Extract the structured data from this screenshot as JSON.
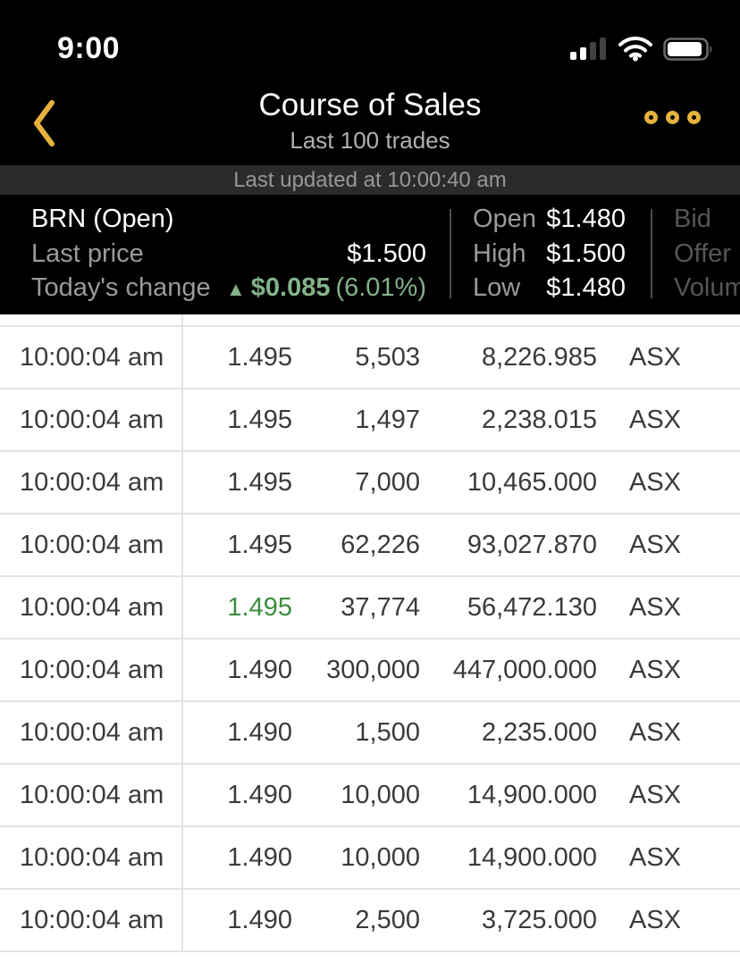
{
  "status_bar": {
    "time": "9:00"
  },
  "header": {
    "title": "Course of Sales",
    "subtitle": "Last 100 trades"
  },
  "updated_bar": {
    "text": "Last updated at 10:00:40 am"
  },
  "quote_panel": {
    "symbol_status": "BRN (Open)",
    "last_price_label": "Last price",
    "last_price": "$1.500",
    "change_label": "Today's change",
    "change_arrow": "▲",
    "change_value": "$0.085",
    "change_percent": "(6.01%)",
    "stats": [
      {
        "label": "Open",
        "value": "$1.480"
      },
      {
        "label": "High",
        "value": "$1.500"
      },
      {
        "label": "Low",
        "value": "$1.480"
      }
    ],
    "dim_labels": [
      "Bid",
      "Offer",
      "Volume"
    ]
  },
  "colors": {
    "accent_gold": "#e6b23e",
    "positive_change_muted": "#84b38a",
    "positive_price_green": "#3c8d40",
    "updated_bar_bg": "#2b2b2b",
    "panel_bg": "#000000",
    "row_divider": "#e4e4e4"
  },
  "trades": [
    {
      "time": "10:00:04 am",
      "price": "1.495",
      "quantity": "5,503",
      "value": "8,226.985",
      "exchange": "ASX",
      "price_up": false
    },
    {
      "time": "10:00:04 am",
      "price": "1.495",
      "quantity": "1,497",
      "value": "2,238.015",
      "exchange": "ASX",
      "price_up": false
    },
    {
      "time": "10:00:04 am",
      "price": "1.495",
      "quantity": "7,000",
      "value": "10,465.000",
      "exchange": "ASX",
      "price_up": false
    },
    {
      "time": "10:00:04 am",
      "price": "1.495",
      "quantity": "62,226",
      "value": "93,027.870",
      "exchange": "ASX",
      "price_up": false
    },
    {
      "time": "10:00:04 am",
      "price": "1.495",
      "quantity": "37,774",
      "value": "56,472.130",
      "exchange": "ASX",
      "price_up": true
    },
    {
      "time": "10:00:04 am",
      "price": "1.490",
      "quantity": "300,000",
      "value": "447,000.000",
      "exchange": "ASX",
      "price_up": false
    },
    {
      "time": "10:00:04 am",
      "price": "1.490",
      "quantity": "1,500",
      "value": "2,235.000",
      "exchange": "ASX",
      "price_up": false
    },
    {
      "time": "10:00:04 am",
      "price": "1.490",
      "quantity": "10,000",
      "value": "14,900.000",
      "exchange": "ASX",
      "price_up": false
    },
    {
      "time": "10:00:04 am",
      "price": "1.490",
      "quantity": "10,000",
      "value": "14,900.000",
      "exchange": "ASX",
      "price_up": false
    },
    {
      "time": "10:00:04 am",
      "price": "1.490",
      "quantity": "2,500",
      "value": "3,725.000",
      "exchange": "ASX",
      "price_up": false
    }
  ]
}
